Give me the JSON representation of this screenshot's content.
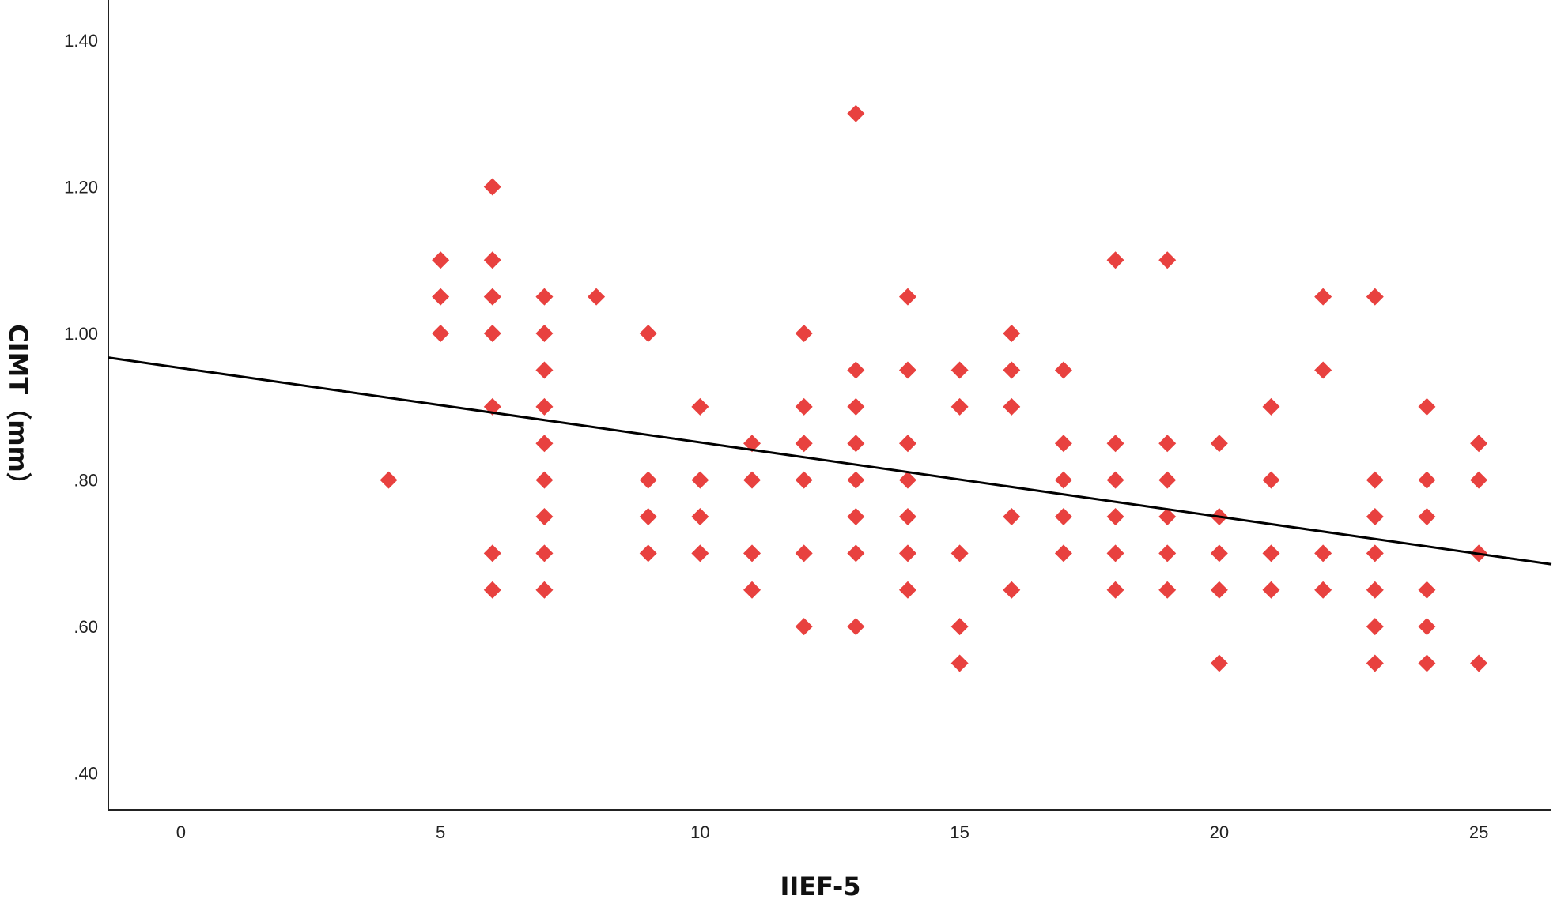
{
  "chart_data": {
    "type": "scatter",
    "title": "",
    "xlabel": "IIEF-5",
    "ylabel": "CIMT（mm）",
    "xlim": [
      -1.4,
      26.4
    ],
    "ylim": [
      0.35,
      1.455
    ],
    "x_ticks": [
      {
        "value": 0,
        "label": "0"
      },
      {
        "value": 5,
        "label": "5"
      },
      {
        "value": 10,
        "label": "10"
      },
      {
        "value": 15,
        "label": "15"
      },
      {
        "value": 20,
        "label": "20"
      },
      {
        "value": 25,
        "label": "25"
      }
    ],
    "y_ticks": [
      {
        "value": 0.4,
        "label": ".40"
      },
      {
        "value": 0.6,
        "label": ".60"
      },
      {
        "value": 0.8,
        "label": ".80"
      },
      {
        "value": 1.0,
        "label": "1.00"
      },
      {
        "value": 1.2,
        "label": "1.20"
      },
      {
        "value": 1.4,
        "label": "1.40"
      }
    ],
    "grid": false,
    "marker_color": "#e8413f",
    "line_color": "#000000",
    "points": [
      {
        "x": 4,
        "y": 0.8
      },
      {
        "x": 5,
        "y": 1.1
      },
      {
        "x": 5,
        "y": 1.05
      },
      {
        "x": 5,
        "y": 1.0
      },
      {
        "x": 6,
        "y": 1.2
      },
      {
        "x": 6,
        "y": 1.1
      },
      {
        "x": 6,
        "y": 1.05
      },
      {
        "x": 6,
        "y": 1.0
      },
      {
        "x": 6,
        "y": 0.9
      },
      {
        "x": 6,
        "y": 0.7
      },
      {
        "x": 6,
        "y": 0.65
      },
      {
        "x": 7,
        "y": 1.05
      },
      {
        "x": 7,
        "y": 1.0
      },
      {
        "x": 7,
        "y": 0.95
      },
      {
        "x": 7,
        "y": 0.9
      },
      {
        "x": 7,
        "y": 0.85
      },
      {
        "x": 7,
        "y": 0.8
      },
      {
        "x": 7,
        "y": 0.75
      },
      {
        "x": 7,
        "y": 0.7
      },
      {
        "x": 7,
        "y": 0.65
      },
      {
        "x": 8,
        "y": 1.05
      },
      {
        "x": 9,
        "y": 1.0
      },
      {
        "x": 9,
        "y": 0.8
      },
      {
        "x": 9,
        "y": 0.75
      },
      {
        "x": 9,
        "y": 0.7
      },
      {
        "x": 10,
        "y": 0.9
      },
      {
        "x": 10,
        "y": 0.8
      },
      {
        "x": 10,
        "y": 0.75
      },
      {
        "x": 10,
        "y": 0.7
      },
      {
        "x": 11,
        "y": 0.85
      },
      {
        "x": 11,
        "y": 0.8
      },
      {
        "x": 11,
        "y": 0.7
      },
      {
        "x": 11,
        "y": 0.65
      },
      {
        "x": 12,
        "y": 1.0
      },
      {
        "x": 12,
        "y": 0.9
      },
      {
        "x": 12,
        "y": 0.85
      },
      {
        "x": 12,
        "y": 0.8
      },
      {
        "x": 12,
        "y": 0.7
      },
      {
        "x": 12,
        "y": 0.6
      },
      {
        "x": 13,
        "y": 1.3
      },
      {
        "x": 13,
        "y": 0.95
      },
      {
        "x": 13,
        "y": 0.9
      },
      {
        "x": 13,
        "y": 0.85
      },
      {
        "x": 13,
        "y": 0.8
      },
      {
        "x": 13,
        "y": 0.75
      },
      {
        "x": 13,
        "y": 0.7
      },
      {
        "x": 13,
        "y": 0.6
      },
      {
        "x": 14,
        "y": 1.05
      },
      {
        "x": 14,
        "y": 0.95
      },
      {
        "x": 14,
        "y": 0.85
      },
      {
        "x": 14,
        "y": 0.8
      },
      {
        "x": 14,
        "y": 0.75
      },
      {
        "x": 14,
        "y": 0.7
      },
      {
        "x": 14,
        "y": 0.65
      },
      {
        "x": 15,
        "y": 0.95
      },
      {
        "x": 15,
        "y": 0.9
      },
      {
        "x": 15,
        "y": 0.7
      },
      {
        "x": 15,
        "y": 0.6
      },
      {
        "x": 15,
        "y": 0.55
      },
      {
        "x": 16,
        "y": 1.0
      },
      {
        "x": 16,
        "y": 0.95
      },
      {
        "x": 16,
        "y": 0.9
      },
      {
        "x": 16,
        "y": 0.75
      },
      {
        "x": 16,
        "y": 0.65
      },
      {
        "x": 17,
        "y": 0.95
      },
      {
        "x": 17,
        "y": 0.85
      },
      {
        "x": 17,
        "y": 0.8
      },
      {
        "x": 17,
        "y": 0.75
      },
      {
        "x": 17,
        "y": 0.7
      },
      {
        "x": 18,
        "y": 1.1
      },
      {
        "x": 18,
        "y": 0.85
      },
      {
        "x": 18,
        "y": 0.8
      },
      {
        "x": 18,
        "y": 0.75
      },
      {
        "x": 18,
        "y": 0.7
      },
      {
        "x": 18,
        "y": 0.65
      },
      {
        "x": 19,
        "y": 1.1
      },
      {
        "x": 19,
        "y": 0.85
      },
      {
        "x": 19,
        "y": 0.8
      },
      {
        "x": 19,
        "y": 0.75
      },
      {
        "x": 19,
        "y": 0.7
      },
      {
        "x": 19,
        "y": 0.65
      },
      {
        "x": 20,
        "y": 0.85
      },
      {
        "x": 20,
        "y": 0.75
      },
      {
        "x": 20,
        "y": 0.7
      },
      {
        "x": 20,
        "y": 0.65
      },
      {
        "x": 20,
        "y": 0.55
      },
      {
        "x": 21,
        "y": 0.9
      },
      {
        "x": 21,
        "y": 0.8
      },
      {
        "x": 21,
        "y": 0.7
      },
      {
        "x": 21,
        "y": 0.65
      },
      {
        "x": 22,
        "y": 1.05
      },
      {
        "x": 22,
        "y": 0.95
      },
      {
        "x": 22,
        "y": 0.7
      },
      {
        "x": 22,
        "y": 0.65
      },
      {
        "x": 23,
        "y": 1.05
      },
      {
        "x": 23,
        "y": 0.8
      },
      {
        "x": 23,
        "y": 0.75
      },
      {
        "x": 23,
        "y": 0.7
      },
      {
        "x": 23,
        "y": 0.65
      },
      {
        "x": 23,
        "y": 0.6
      },
      {
        "x": 23,
        "y": 0.55
      },
      {
        "x": 24,
        "y": 0.9
      },
      {
        "x": 24,
        "y": 0.8
      },
      {
        "x": 24,
        "y": 0.75
      },
      {
        "x": 24,
        "y": 0.65
      },
      {
        "x": 24,
        "y": 0.6
      },
      {
        "x": 24,
        "y": 0.55
      },
      {
        "x": 25,
        "y": 0.85
      },
      {
        "x": 25,
        "y": 0.8
      },
      {
        "x": 25,
        "y": 0.7
      },
      {
        "x": 25,
        "y": 0.55
      }
    ],
    "fit_line": {
      "x": [
        -1.4,
        26.4
      ],
      "y": [
        0.967,
        0.685
      ]
    }
  }
}
